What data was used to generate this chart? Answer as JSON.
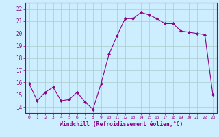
{
  "x": [
    0,
    1,
    2,
    3,
    4,
    5,
    6,
    7,
    8,
    9,
    10,
    11,
    12,
    13,
    14,
    15,
    16,
    17,
    18,
    19,
    20,
    21,
    22,
    23
  ],
  "y": [
    15.9,
    14.5,
    15.2,
    15.6,
    14.5,
    14.6,
    15.2,
    14.4,
    13.8,
    15.9,
    18.3,
    19.8,
    21.2,
    21.2,
    21.7,
    21.5,
    21.2,
    20.8,
    20.8,
    20.2,
    20.1,
    20.0,
    19.9,
    15.0
  ],
  "line_color": "#8b008b",
  "marker": "D",
  "marker_size": 2.0,
  "bg_color": "#cceeff",
  "grid_color": "#aacccc",
  "xlabel": "Windchill (Refroidissement éolien,°C)",
  "xlabel_color": "#8b008b",
  "ylim": [
    13.5,
    22.5
  ],
  "yticks": [
    14,
    15,
    16,
    17,
    18,
    19,
    20,
    21,
    22
  ],
  "xticks": [
    0,
    1,
    2,
    3,
    4,
    5,
    6,
    7,
    8,
    9,
    10,
    11,
    12,
    13,
    14,
    15,
    16,
    17,
    18,
    19,
    20,
    21,
    22,
    23
  ],
  "tick_color": "#8b008b",
  "spine_color": "#8b008b"
}
